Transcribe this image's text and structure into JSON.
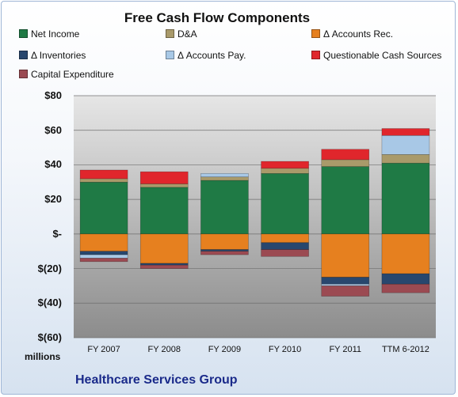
{
  "chart_data": {
    "type": "bar",
    "stacked": true,
    "title": "Free Cash Flow Components",
    "unit_label": "millions",
    "footer": "Healthcare Services Group",
    "ylim": [
      -60,
      80
    ],
    "y_ticks": [
      {
        "value": 80,
        "label": "$80"
      },
      {
        "value": 60,
        "label": "$60"
      },
      {
        "value": 40,
        "label": "$40"
      },
      {
        "value": 20,
        "label": "$20"
      },
      {
        "value": 0,
        "label": "$-"
      },
      {
        "value": -20,
        "label": "$(20)"
      },
      {
        "value": -40,
        "label": "$(40)"
      },
      {
        "value": -60,
        "label": "$(60)"
      }
    ],
    "grid": true,
    "legend_position": "top",
    "categories": [
      "FY 2007",
      "FY 2008",
      "FY 2009",
      "FY 2010",
      "FY 2011",
      "TTM 6-2012"
    ],
    "series": [
      {
        "name": "Net Income",
        "color": "#1f7a45",
        "values": [
          30,
          27,
          31,
          35,
          39,
          41
        ]
      },
      {
        "name": "D&A",
        "color": "#a99a6a",
        "values": [
          2,
          2,
          2,
          3,
          4,
          5
        ]
      },
      {
        "name": "Δ Accounts Rec.",
        "color": "#e6801f",
        "values": [
          -10,
          -17,
          -9,
          -5,
          -25,
          -23
        ]
      },
      {
        "name": "Δ Inventories",
        "color": "#28476e",
        "values": [
          -2,
          -1,
          -1,
          -4,
          -4,
          -6
        ]
      },
      {
        "name": "Δ Accounts Pay.",
        "color": "#a8c8e6",
        "values": [
          -2,
          0,
          2,
          0,
          -1,
          11
        ]
      },
      {
        "name": "Questionable Cash Sources",
        "color": "#e0262c",
        "values": [
          5,
          7,
          0,
          4,
          6,
          4
        ]
      },
      {
        "name": "Capital Expenditure",
        "color": "#9b4a52",
        "values": [
          -2,
          -2,
          -2,
          -4,
          -6,
          -5
        ]
      }
    ]
  }
}
